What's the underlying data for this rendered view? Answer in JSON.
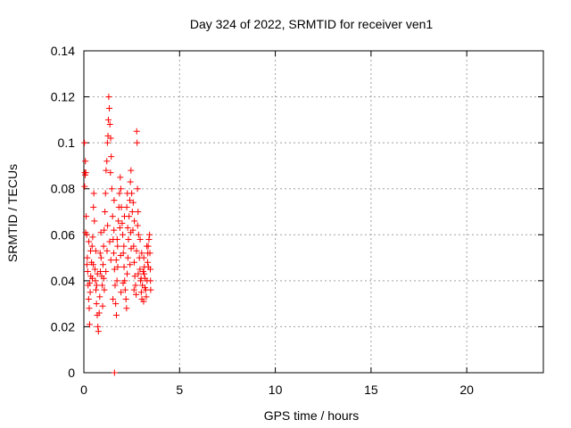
{
  "chart_data": {
    "type": "scatter",
    "title": "Day 324 of 2022, SRMTID for receiver ven1",
    "xlabel": "GPS time / hours",
    "ylabel": "SRMTID / TECUs",
    "xlim": [
      0,
      24
    ],
    "ylim": [
      0,
      0.14
    ],
    "xticks": [
      0,
      5,
      10,
      15,
      20
    ],
    "xtick_labels": [
      "0",
      "5",
      "10",
      "15",
      "20"
    ],
    "yticks": [
      0,
      0.02,
      0.04,
      0.06,
      0.08,
      0.1,
      0.12,
      0.14
    ],
    "ytick_labels": [
      "0",
      "0.02",
      "0.04",
      "0.06",
      "0.08",
      "0.1",
      "0.12",
      "0.14"
    ],
    "grid": true,
    "marker": "+",
    "color": "#ff0000",
    "series": [
      {
        "name": "SRMTID",
        "points": [
          [
            0.03,
            0.1
          ],
          [
            0.05,
            0.087
          ],
          [
            0.07,
            0.086
          ],
          [
            0.08,
            0.092
          ],
          [
            0.1,
            0.087
          ],
          [
            0.04,
            0.081
          ],
          [
            0.12,
            0.068
          ],
          [
            0.15,
            0.06
          ],
          [
            0.18,
            0.05
          ],
          [
            0.2,
            0.044
          ],
          [
            0.22,
            0.038
          ],
          [
            0.25,
            0.032
          ],
          [
            0.28,
            0.028
          ],
          [
            0.3,
            0.021
          ],
          [
            0.33,
            0.035
          ],
          [
            0.36,
            0.042
          ],
          [
            0.4,
            0.048
          ],
          [
            0.43,
            0.055
          ],
          [
            0.46,
            0.059
          ],
          [
            0.5,
            0.072
          ],
          [
            0.52,
            0.078
          ],
          [
            0.55,
            0.066
          ],
          [
            0.58,
            0.045
          ],
          [
            0.6,
            0.04
          ],
          [
            0.63,
            0.036
          ],
          [
            0.66,
            0.03
          ],
          [
            0.7,
            0.025
          ],
          [
            0.73,
            0.02
          ],
          [
            0.76,
            0.018
          ],
          [
            0.8,
            0.026
          ],
          [
            0.83,
            0.033
          ],
          [
            0.86,
            0.044
          ],
          [
            0.9,
            0.05
          ],
          [
            0.93,
            0.042
          ],
          [
            0.96,
            0.038
          ],
          [
            1.0,
            0.047
          ],
          [
            1.03,
            0.055
          ],
          [
            1.06,
            0.062
          ],
          [
            1.1,
            0.07
          ],
          [
            1.13,
            0.078
          ],
          [
            1.16,
            0.088
          ],
          [
            1.2,
            0.092
          ],
          [
            1.23,
            0.1
          ],
          [
            1.26,
            0.103
          ],
          [
            1.28,
            0.11
          ],
          [
            1.3,
            0.12
          ],
          [
            1.33,
            0.115
          ],
          [
            1.36,
            0.108
          ],
          [
            1.4,
            0.102
          ],
          [
            1.43,
            0.094
          ],
          [
            1.46,
            0.08
          ],
          [
            1.5,
            0.068
          ],
          [
            1.53,
            0.058
          ],
          [
            1.56,
            0.052
          ],
          [
            1.6,
            0.045
          ],
          [
            1.63,
            0.038
          ],
          [
            1.66,
            0.03
          ],
          [
            1.7,
            0.025
          ],
          [
            1.73,
            0.04
          ],
          [
            1.76,
            0.055
          ],
          [
            1.8,
            0.066
          ],
          [
            1.83,
            0.072
          ],
          [
            1.86,
            0.078
          ],
          [
            1.9,
            0.085
          ],
          [
            1.93,
            0.08
          ],
          [
            1.96,
            0.072
          ],
          [
            2.0,
            0.065
          ],
          [
            2.03,
            0.06
          ],
          [
            2.06,
            0.052
          ],
          [
            2.1,
            0.046
          ],
          [
            2.13,
            0.04
          ],
          [
            2.16,
            0.036
          ],
          [
            2.2,
            0.032
          ],
          [
            2.23,
            0.028
          ],
          [
            2.26,
            0.043
          ],
          [
            2.3,
            0.05
          ],
          [
            2.33,
            0.058
          ],
          [
            2.36,
            0.068
          ],
          [
            2.4,
            0.075
          ],
          [
            2.43,
            0.083
          ],
          [
            2.46,
            0.088
          ],
          [
            2.5,
            0.078
          ],
          [
            2.53,
            0.07
          ],
          [
            2.56,
            0.062
          ],
          [
            2.6,
            0.055
          ],
          [
            2.63,
            0.048
          ],
          [
            2.66,
            0.042
          ],
          [
            2.7,
            0.038
          ],
          [
            2.73,
            0.034
          ],
          [
            2.76,
            0.105
          ],
          [
            2.78,
            0.1
          ],
          [
            2.8,
            0.08
          ],
          [
            2.83,
            0.07
          ],
          [
            2.86,
            0.06
          ],
          [
            2.9,
            0.05
          ],
          [
            2.93,
            0.045
          ],
          [
            2.96,
            0.04
          ],
          [
            3.0,
            0.035
          ],
          [
            3.03,
            0.032
          ],
          [
            3.06,
            0.038
          ],
          [
            3.1,
            0.044
          ],
          [
            3.13,
            0.05
          ],
          [
            3.16,
            0.046
          ],
          [
            3.2,
            0.041
          ],
          [
            3.23,
            0.036
          ],
          [
            3.26,
            0.033
          ],
          [
            3.3,
            0.04
          ],
          [
            3.33,
            0.048
          ],
          [
            3.36,
            0.055
          ],
          [
            3.4,
            0.058
          ],
          [
            3.43,
            0.06
          ],
          [
            3.45,
            0.052
          ],
          [
            3.47,
            0.045
          ],
          [
            3.48,
            0.04
          ],
          [
            3.49,
            0.036
          ],
          [
            0.26,
            0.057
          ],
          [
            0.44,
            0.041
          ],
          [
            0.62,
            0.053
          ],
          [
            0.89,
            0.061
          ],
          [
            1.07,
            0.036
          ],
          [
            1.24,
            0.064
          ],
          [
            1.41,
            0.049
          ],
          [
            1.58,
            0.075
          ],
          [
            1.77,
            0.046
          ],
          [
            1.94,
            0.035
          ],
          [
            2.12,
            0.068
          ],
          [
            2.29,
            0.063
          ],
          [
            2.47,
            0.054
          ],
          [
            2.64,
            0.066
          ],
          [
            2.84,
            0.043
          ],
          [
            3.02,
            0.052
          ],
          [
            3.19,
            0.037
          ],
          [
            3.37,
            0.046
          ],
          [
            0.16,
            0.047
          ],
          [
            0.35,
            0.053
          ],
          [
            0.71,
            0.043
          ],
          [
            0.98,
            0.029
          ],
          [
            1.15,
            0.044
          ],
          [
            1.35,
            0.057
          ],
          [
            1.52,
            0.032
          ],
          [
            1.69,
            0.049
          ],
          [
            1.88,
            0.063
          ],
          [
            2.05,
            0.039
          ],
          [
            2.24,
            0.072
          ],
          [
            2.41,
            0.047
          ],
          [
            2.58,
            0.074
          ],
          [
            2.75,
            0.053
          ],
          [
            2.94,
            0.058
          ],
          [
            3.12,
            0.031
          ],
          [
            3.29,
            0.055
          ],
          [
            0.09,
            0.061
          ],
          [
            0.31,
            0.039
          ],
          [
            0.49,
            0.047
          ],
          [
            0.67,
            0.038
          ],
          [
            0.85,
            0.052
          ],
          [
            1.04,
            0.041
          ],
          [
            1.21,
            0.053
          ],
          [
            1.39,
            0.087
          ],
          [
            1.57,
            0.062
          ],
          [
            1.74,
            0.058
          ],
          [
            1.92,
            0.051
          ],
          [
            2.09,
            0.055
          ],
          [
            2.27,
            0.078
          ],
          [
            2.45,
            0.061
          ],
          [
            2.62,
            0.036
          ],
          [
            2.81,
            0.064
          ],
          [
            2.99,
            0.041
          ],
          [
            3.15,
            0.043
          ],
          [
            3.34,
            0.052
          ],
          [
            1.6,
            0.0
          ]
        ]
      }
    ]
  }
}
